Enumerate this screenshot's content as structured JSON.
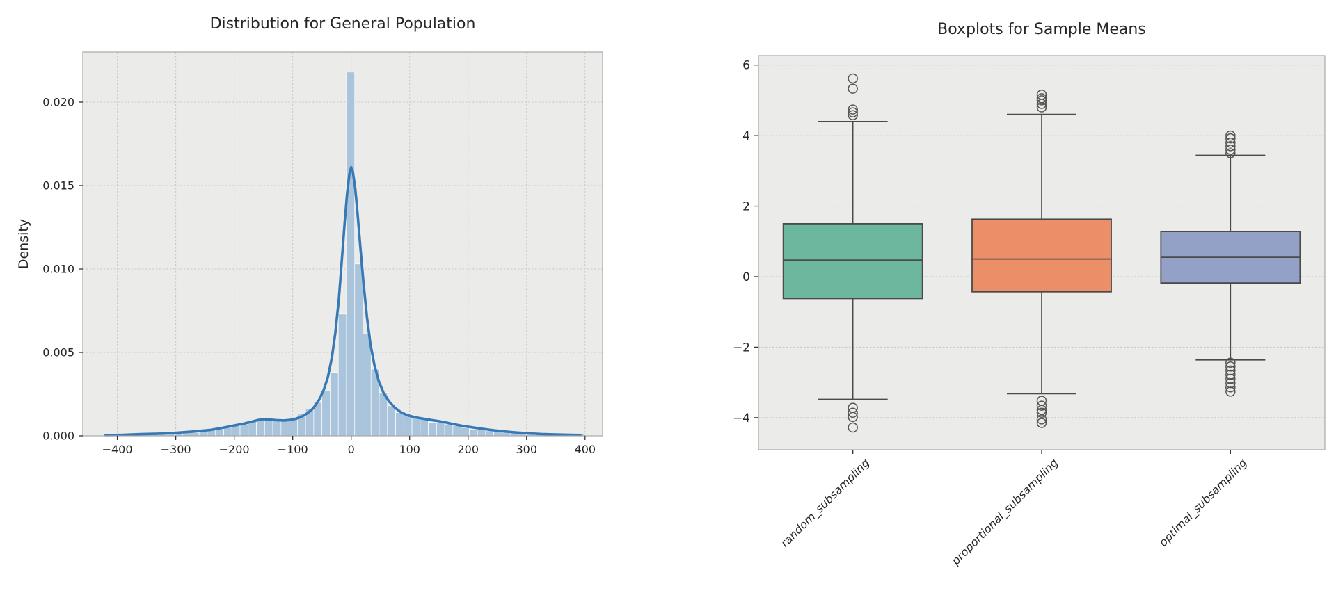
{
  "style": {
    "figure_bg": "#ffffff",
    "axes_bg": "#ebebea",
    "grid_color": "#c9c9c9",
    "spine_color": "#a8a8a8",
    "text_color": "#262626",
    "tick_color": "#333333",
    "hist_fill": "#a9c4db",
    "hist_edge": "#ffffff",
    "kde_color": "#3779b5",
    "box_edge": "#4a4a4a",
    "whisker_color": "#4a4a4a",
    "flier_color": "#555555"
  },
  "chart_data": [
    {
      "type": "histogram+kde",
      "title": "Distribution for General Population",
      "ylabel": "Density",
      "xlim": [
        -459,
        430
      ],
      "ylim": [
        0,
        0.023
      ],
      "xticks": [
        -400,
        -300,
        -200,
        -100,
        0,
        100,
        200,
        300,
        400
      ],
      "xtick_labels": [
        "−400",
        "−300",
        "−200",
        "−100",
        "0",
        "100",
        "200",
        "300",
        "400"
      ],
      "yticks": [
        0.0,
        0.005,
        0.01,
        0.015,
        0.02
      ],
      "ytick_labels": [
        "0.000",
        "0.005",
        "0.010",
        "0.015",
        "0.020"
      ],
      "grid": "both",
      "bin_width": 14,
      "bars": [
        [
          -407,
          0.0001
        ],
        [
          -393,
          0.0001
        ],
        [
          -379,
          0.0001
        ],
        [
          -365,
          0.0001
        ],
        [
          -351,
          0.0001
        ],
        [
          -337,
          0.0001
        ],
        [
          -323,
          0.0001
        ],
        [
          -309,
          0.0001
        ],
        [
          -295,
          0.0002
        ],
        [
          -281,
          0.0002
        ],
        [
          -267,
          0.0002
        ],
        [
          -253,
          0.0003
        ],
        [
          -239,
          0.0004
        ],
        [
          -225,
          0.0004
        ],
        [
          -211,
          0.0005
        ],
        [
          -197,
          0.0006
        ],
        [
          -183,
          0.0007
        ],
        [
          -169,
          0.0009
        ],
        [
          -155,
          0.001
        ],
        [
          -141,
          0.001
        ],
        [
          -127,
          0.0009
        ],
        [
          -113,
          0.0009
        ],
        [
          -99,
          0.001
        ],
        [
          -85,
          0.0013
        ],
        [
          -71,
          0.0016
        ],
        [
          -57,
          0.002
        ],
        [
          -43,
          0.0027
        ],
        [
          -29,
          0.0038
        ],
        [
          -15,
          0.0073
        ],
        [
          -1,
          0.0218
        ],
        [
          13,
          0.0103
        ],
        [
          27,
          0.0061
        ],
        [
          41,
          0.004
        ],
        [
          55,
          0.0026
        ],
        [
          69,
          0.0018
        ],
        [
          83,
          0.0014
        ],
        [
          97,
          0.0012
        ],
        [
          111,
          0.0011
        ],
        [
          125,
          0.001
        ],
        [
          139,
          0.0008
        ],
        [
          153,
          0.0008
        ],
        [
          167,
          0.0007
        ],
        [
          181,
          0.0006
        ],
        [
          195,
          0.0005
        ],
        [
          209,
          0.0004
        ],
        [
          223,
          0.0004
        ],
        [
          237,
          0.0003
        ],
        [
          251,
          0.0003
        ],
        [
          265,
          0.0002
        ],
        [
          279,
          0.0002
        ],
        [
          293,
          0.0002
        ],
        [
          307,
          0.0001
        ],
        [
          321,
          0.0001
        ],
        [
          335,
          0.0001
        ],
        [
          349,
          0.0001
        ],
        [
          363,
          0.0001
        ],
        [
          377,
          0.0001
        ],
        [
          391,
          0.0001
        ]
      ],
      "kde": [
        [
          -420,
          4e-05
        ],
        [
          -390,
          6e-05
        ],
        [
          -360,
          0.0001
        ],
        [
          -330,
          0.00013
        ],
        [
          -300,
          0.00018
        ],
        [
          -270,
          0.00026
        ],
        [
          -240,
          0.00036
        ],
        [
          -220,
          0.00048
        ],
        [
          -200,
          0.00062
        ],
        [
          -185,
          0.00072
        ],
        [
          -170,
          0.00085
        ],
        [
          -158,
          0.00096
        ],
        [
          -150,
          0.001
        ],
        [
          -140,
          0.00098
        ],
        [
          -128,
          0.00094
        ],
        [
          -115,
          0.00092
        ],
        [
          -105,
          0.00095
        ],
        [
          -95,
          0.00102
        ],
        [
          -85,
          0.00115
        ],
        [
          -75,
          0.00135
        ],
        [
          -65,
          0.00165
        ],
        [
          -55,
          0.00215
        ],
        [
          -47,
          0.00275
        ],
        [
          -40,
          0.0035
        ],
        [
          -33,
          0.0047
        ],
        [
          -27,
          0.0062
        ],
        [
          -21,
          0.0082
        ],
        [
          -16,
          0.0105
        ],
        [
          -11,
          0.0128
        ],
        [
          -7,
          0.0145
        ],
        [
          -3,
          0.0157
        ],
        [
          0,
          0.0161
        ],
        [
          3,
          0.0158
        ],
        [
          7,
          0.0148
        ],
        [
          11,
          0.0133
        ],
        [
          16,
          0.0112
        ],
        [
          21,
          0.0092
        ],
        [
          27,
          0.0071
        ],
        [
          33,
          0.0055
        ],
        [
          40,
          0.0042
        ],
        [
          47,
          0.0033
        ],
        [
          55,
          0.0026
        ],
        [
          65,
          0.00205
        ],
        [
          75,
          0.00168
        ],
        [
          85,
          0.00142
        ],
        [
          95,
          0.00125
        ],
        [
          105,
          0.00115
        ],
        [
          115,
          0.00108
        ],
        [
          128,
          0.001
        ],
        [
          140,
          0.00093
        ],
        [
          150,
          0.00088
        ],
        [
          162,
          0.0008
        ],
        [
          175,
          0.0007
        ],
        [
          190,
          0.0006
        ],
        [
          205,
          0.00052
        ],
        [
          220,
          0.00044
        ],
        [
          240,
          0.00035
        ],
        [
          260,
          0.00027
        ],
        [
          280,
          0.00021
        ],
        [
          300,
          0.00016
        ],
        [
          325,
          0.00011
        ],
        [
          350,
          8e-05
        ],
        [
          375,
          6e-05
        ],
        [
          392,
          5e-05
        ]
      ]
    },
    {
      "type": "boxplot",
      "title": "Boxplots for Sample Means",
      "ylim": [
        -4.91,
        6.27
      ],
      "yticks": [
        6,
        4,
        2,
        0,
        -2,
        -4
      ],
      "ytick_labels": [
        "6",
        "4",
        "2",
        "0",
        "−2",
        "−4"
      ],
      "grid": "horizontal",
      "categories": [
        "random_subsampling",
        "proportional_subsampling",
        "optimal_subsampling"
      ],
      "boxes": [
        {
          "label": "random_subsampling",
          "color": "#6cb79e",
          "whislo": -3.48,
          "q1": -0.62,
          "med": 0.47,
          "q3": 1.5,
          "whishi": 4.4,
          "fliers_high": [
            4.58,
            4.66,
            4.74,
            5.33,
            5.62
          ],
          "fliers_low": [
            -3.72,
            -3.86,
            -3.98,
            -4.28
          ]
        },
        {
          "label": "proportional_subsampling",
          "color": "#ea8f68",
          "whislo": -3.32,
          "q1": -0.43,
          "med": 0.5,
          "q3": 1.63,
          "whishi": 4.6,
          "fliers_high": [
            4.8,
            4.9,
            5.0,
            5.06,
            5.16
          ],
          "fliers_low": [
            -3.52,
            -3.66,
            -3.78,
            -3.86,
            -4.05,
            -4.15
          ]
        },
        {
          "label": "optimal_subsampling",
          "color": "#92a1c5",
          "whislo": -2.36,
          "q1": -0.18,
          "med": 0.55,
          "q3": 1.28,
          "whishi": 3.44,
          "fliers_high": [
            3.5,
            3.6,
            3.7,
            3.8,
            3.92,
            4.0
          ],
          "fliers_low": [
            -2.44,
            -2.55,
            -2.66,
            -2.78,
            -2.9,
            -3.02,
            -3.14,
            -3.26
          ]
        }
      ]
    }
  ]
}
